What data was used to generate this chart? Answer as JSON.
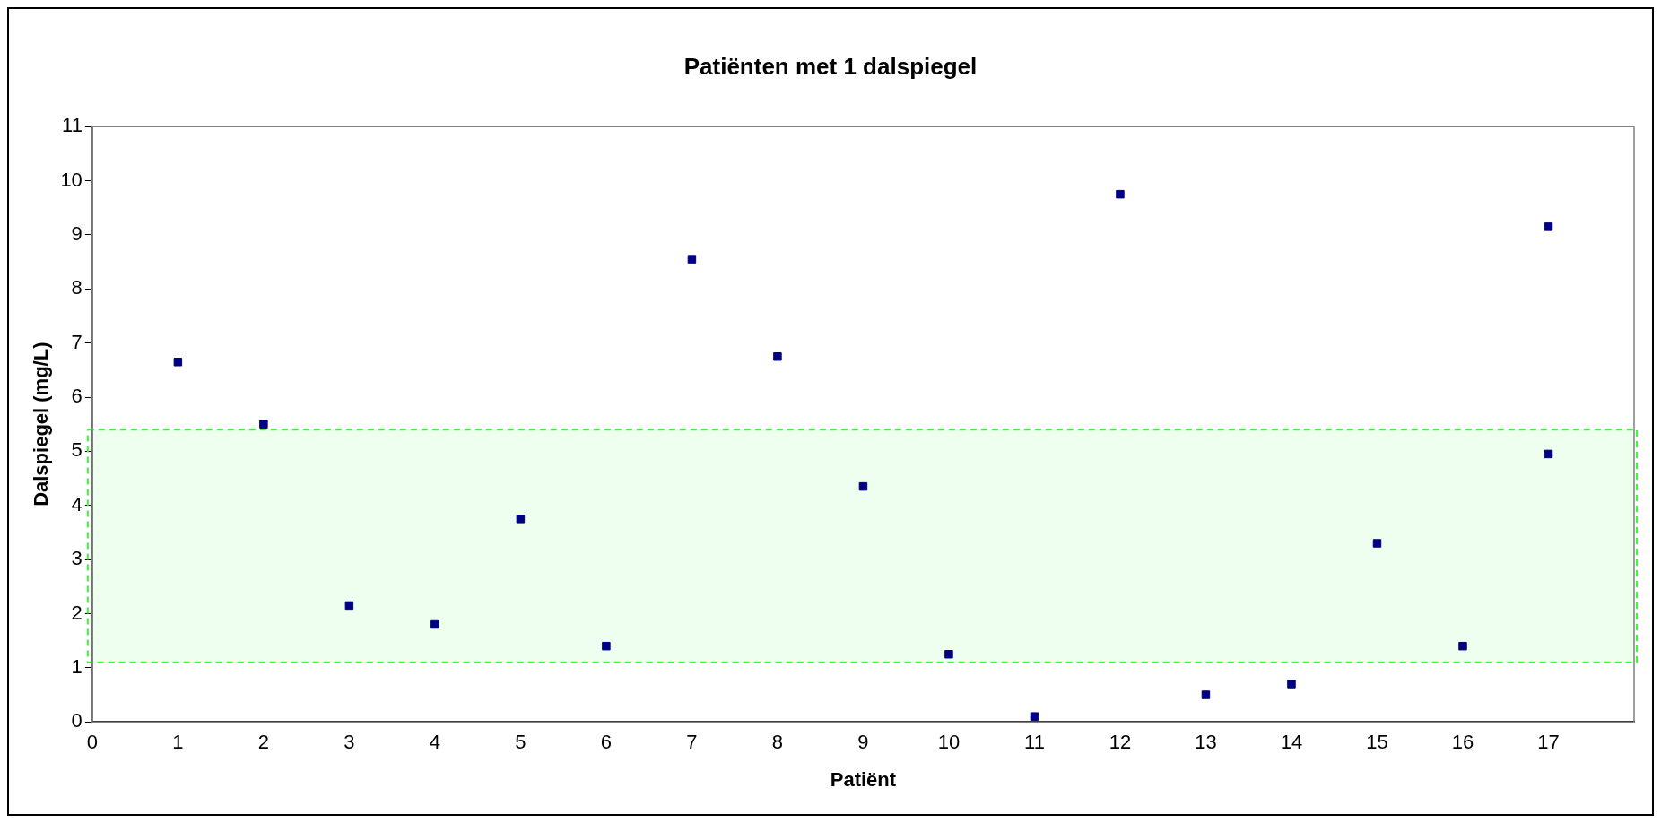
{
  "chart_data": {
    "type": "scatter",
    "title": "Patiënten met 1 dalspiegel",
    "xlabel": "Patiënt",
    "ylabel": "Dalspiegel (mg/L)",
    "x": [
      1,
      2,
      3,
      4,
      5,
      6,
      7,
      8,
      9,
      10,
      11,
      12,
      13,
      14,
      15,
      16,
      17,
      17
    ],
    "series": [
      {
        "color": "#000080",
        "values": [
          6.65,
          5.5,
          2.15,
          1.8,
          3.75,
          1.4,
          8.55,
          6.75,
          4.35,
          1.25,
          0.1,
          9.75,
          0.5,
          0.7,
          3.3,
          1.4,
          9.15,
          4.95
        ]
      }
    ],
    "xlim": [
      0,
      18
    ],
    "xticks": [
      0,
      1,
      2,
      3,
      4,
      5,
      6,
      7,
      8,
      9,
      10,
      11,
      12,
      13,
      14,
      15,
      16,
      17
    ],
    "ylim": [
      0,
      11
    ],
    "yticks": [
      0,
      1,
      2,
      3,
      4,
      5,
      6,
      7,
      8,
      9,
      10,
      11
    ],
    "bands": [
      {
        "axis": "y",
        "from": 1.1,
        "to": 5.4,
        "color": "#33ff33"
      }
    ],
    "marker": "square",
    "grid": false,
    "legend": false
  }
}
